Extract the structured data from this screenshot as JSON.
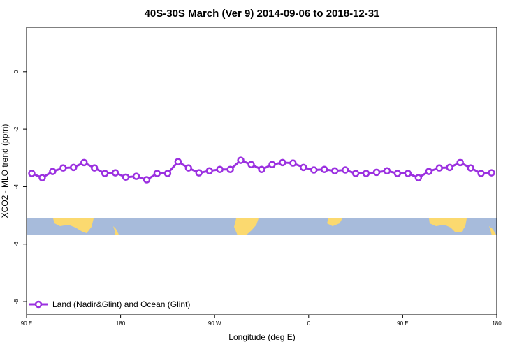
{
  "chart_data": {
    "type": "line",
    "title": "40S-30S March (Ver 9)   2014-09-06 to 2018-12-31",
    "x_label": "Longitude (deg E)",
    "y_label": "XCO2 - MLO trend (ppm)",
    "x": [
      95,
      105,
      115,
      125,
      135,
      145,
      155,
      165,
      175,
      185,
      195,
      205,
      215,
      225,
      235,
      245,
      255,
      265,
      275,
      285,
      295,
      305,
      315,
      325,
      335,
      345,
      355,
      365,
      375,
      385,
      395,
      405,
      415,
      425,
      435,
      445,
      455,
      465,
      475,
      485,
      495,
      505,
      515,
      525,
      535
    ],
    "series": [
      {
        "name": "Land (Nadir&Glint) and Ocean (Glint)",
        "color": "#9b30e0",
        "values": [
          -3.54,
          -3.69,
          -3.47,
          -3.35,
          -3.33,
          -3.16,
          -3.35,
          -3.54,
          -3.52,
          -3.67,
          -3.64,
          -3.76,
          -3.54,
          -3.54,
          -3.13,
          -3.35,
          -3.52,
          -3.45,
          -3.4,
          -3.4,
          -3.08,
          -3.23,
          -3.4,
          -3.23,
          -3.16,
          -3.18,
          -3.33,
          -3.42,
          -3.4,
          -3.45,
          -3.42,
          -3.54,
          -3.54,
          -3.5,
          -3.45,
          -3.54,
          -3.54,
          -3.69,
          -3.47,
          -3.35,
          -3.33,
          -3.16,
          -3.35,
          -3.54,
          -3.52
        ]
      }
    ],
    "xlim": [
      90,
      540
    ],
    "xticks": [
      {
        "value": 90,
        "label": "90 E"
      },
      180,
      {
        "value": 270,
        "label": "90 W"
      },
      {
        "value": 360,
        "label": "0"
      },
      {
        "value": 450,
        "label": "90 E"
      },
      {
        "value": 540,
        "label": "180"
      }
    ],
    "ylim": [
      -8.46,
      1.55
    ],
    "yticks": [
      0,
      -2,
      -4,
      -6,
      -8
    ],
    "legend": "bottom-left"
  }
}
